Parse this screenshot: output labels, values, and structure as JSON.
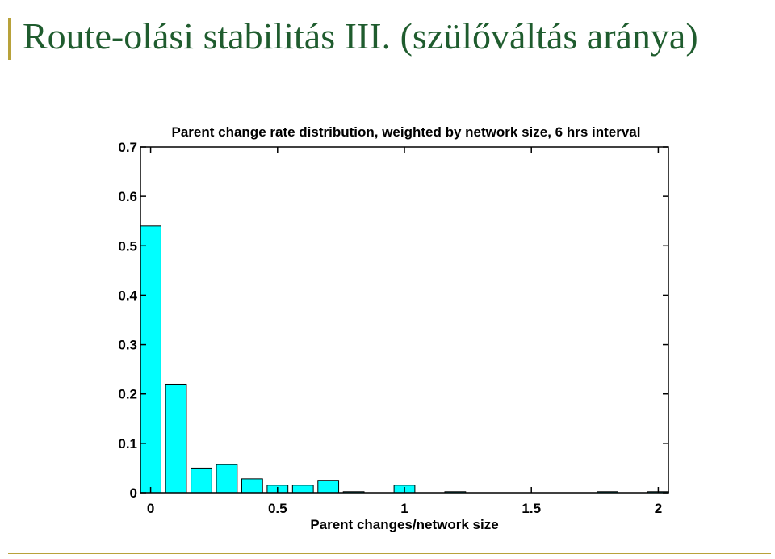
{
  "slide": {
    "title": "Route-olási stabilitás III. (szülőváltás aránya)",
    "title_color": "#1f5c2e",
    "accent_color": "#b8a23a"
  },
  "chart_data": {
    "type": "bar",
    "title": "Parent change rate distribution, weighted by network size, 6 hrs interval",
    "xlabel": "Parent changes/network size",
    "ylabel": "",
    "x": [
      0,
      0.1,
      0.2,
      0.3,
      0.4,
      0.5,
      0.6,
      0.7,
      0.8,
      0.9,
      1.0,
      1.1,
      1.2,
      1.3,
      1.4,
      1.5,
      1.6,
      1.7,
      1.8,
      1.9,
      2.0
    ],
    "values": [
      0.54,
      0.22,
      0.05,
      0.057,
      0.028,
      0.015,
      0.015,
      0.025,
      0.002,
      0,
      0.015,
      0,
      0.002,
      0,
      0,
      0,
      0,
      0,
      0.002,
      0,
      0.002
    ],
    "xlim": [
      -0.04,
      2.04
    ],
    "ylim": [
      0,
      0.7
    ],
    "xticks": [
      0,
      0.5,
      1,
      1.5,
      2
    ],
    "xtick_labels": [
      "0",
      "0.5",
      "1",
      "1.5",
      "2"
    ],
    "yticks": [
      0,
      0.1,
      0.2,
      0.3,
      0.4,
      0.5,
      0.6,
      0.7
    ],
    "ytick_labels": [
      "0",
      "0.1",
      "0.2",
      "0.3",
      "0.4",
      "0.5",
      "0.6",
      "0.7"
    ],
    "grid": false,
    "bar_color": "#00ffff",
    "edge_color": "#000000"
  }
}
